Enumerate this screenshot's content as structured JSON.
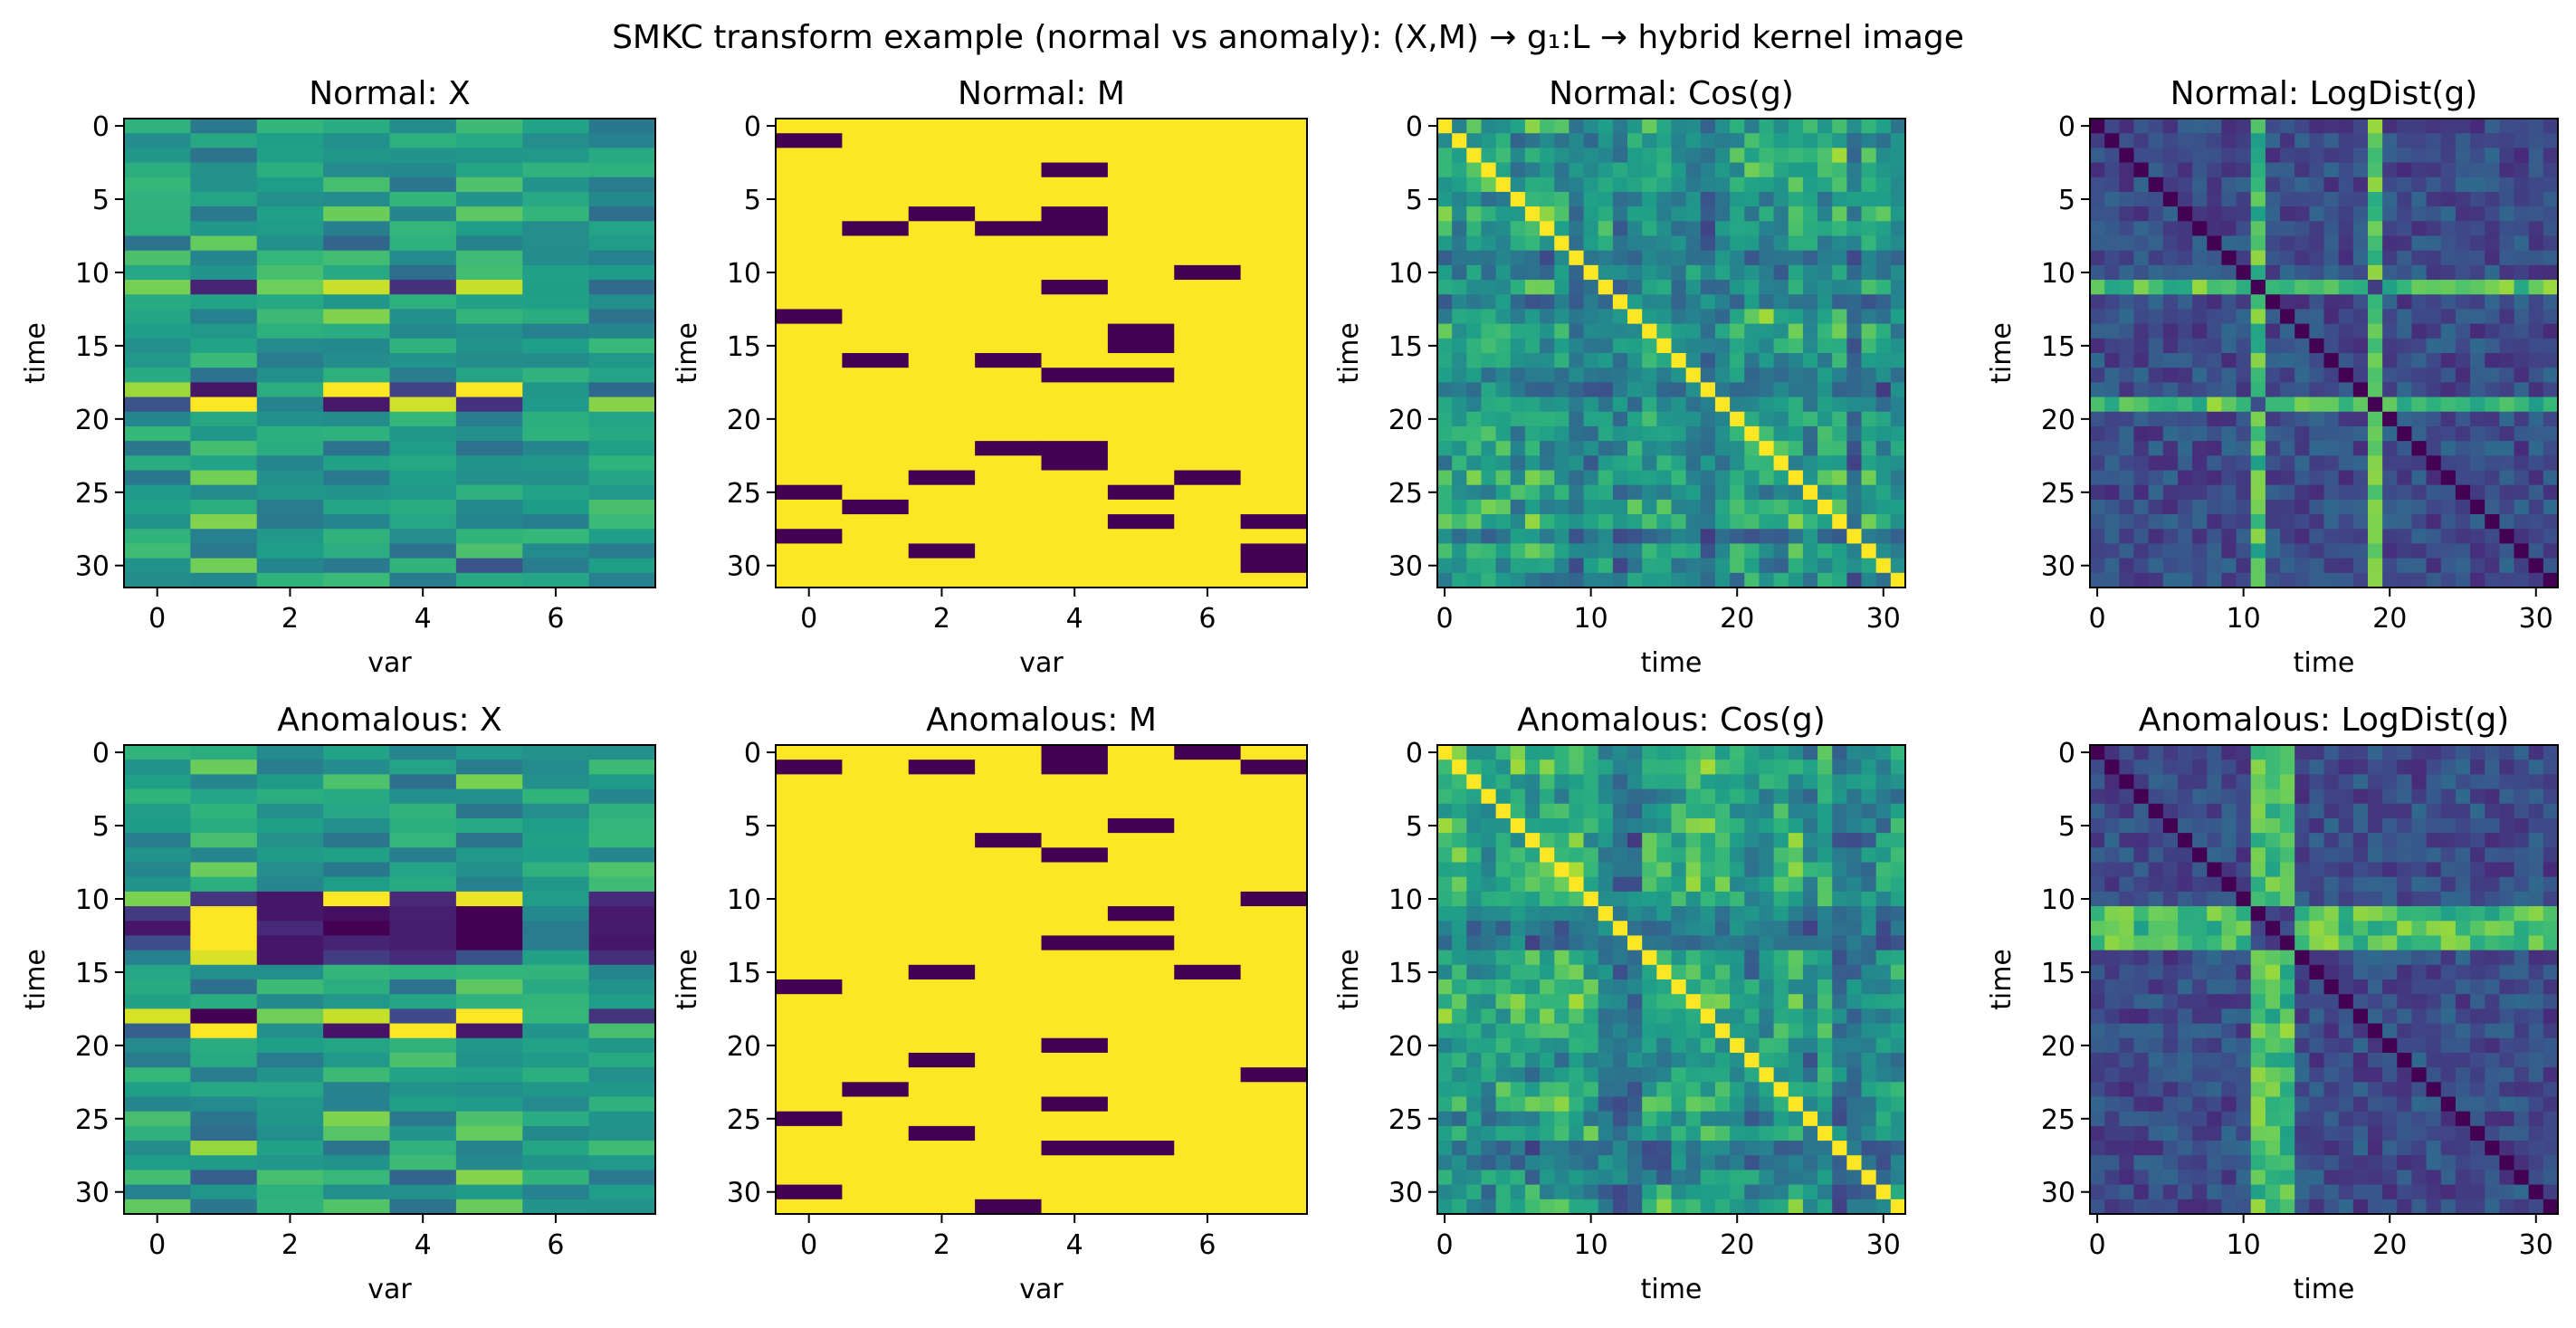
{
  "suptitle": "SMKC transform example (normal vs anomaly): (X,M) → g₁:L → hybrid kernel image",
  "colormap": {
    "name": "viridis",
    "stops": [
      "#440154",
      "#482878",
      "#3e4a89",
      "#31688e",
      "#26828e",
      "#1f9e89",
      "#35b779",
      "#6ece58",
      "#b5de2b",
      "#fde725"
    ]
  },
  "chart_data": [
    {
      "type": "heatmap",
      "title": "Normal: X",
      "xlabel": "var",
      "ylabel": "time",
      "xlim": [
        -0.5,
        7.5
      ],
      "ylim": [
        31.5,
        -0.5
      ],
      "xticks": [
        0,
        2,
        4,
        6
      ],
      "xtick_labels": [
        "0",
        "2",
        "4",
        "6"
      ],
      "yticks": [
        0,
        5,
        10,
        15,
        20,
        25,
        30
      ],
      "ytick_labels": [
        "0",
        "5",
        "10",
        "15",
        "20",
        "25",
        "30"
      ],
      "n_rows": 32,
      "n_cols": 8,
      "source": "normal_x"
    },
    {
      "type": "heatmap",
      "title": "Normal: M",
      "xlabel": "var",
      "ylabel": "time",
      "xlim": [
        -0.5,
        7.5
      ],
      "ylim": [
        31.5,
        -0.5
      ],
      "xticks": [
        0,
        2,
        4,
        6
      ],
      "xtick_labels": [
        "0",
        "2",
        "4",
        "6"
      ],
      "yticks": [
        0,
        5,
        10,
        15,
        20,
        25,
        30
      ],
      "ytick_labels": [
        "0",
        "5",
        "10",
        "15",
        "20",
        "25",
        "30"
      ],
      "n_rows": 32,
      "n_cols": 8,
      "source": "normal_m",
      "missing": [
        [
          1,
          0
        ],
        [
          3,
          4
        ],
        [
          6,
          2
        ],
        [
          6,
          4
        ],
        [
          7,
          1
        ],
        [
          7,
          3
        ],
        [
          7,
          4
        ],
        [
          10,
          6
        ],
        [
          11,
          4
        ],
        [
          13,
          0
        ],
        [
          14,
          5
        ],
        [
          15,
          5
        ],
        [
          16,
          1
        ],
        [
          16,
          3
        ],
        [
          17,
          4
        ],
        [
          17,
          5
        ],
        [
          22,
          3
        ],
        [
          22,
          4
        ],
        [
          23,
          4
        ],
        [
          24,
          2
        ],
        [
          24,
          6
        ],
        [
          25,
          0
        ],
        [
          25,
          5
        ],
        [
          26,
          1
        ],
        [
          27,
          5
        ],
        [
          27,
          7
        ],
        [
          28,
          0
        ],
        [
          29,
          2
        ],
        [
          29,
          7
        ],
        [
          30,
          7
        ]
      ]
    },
    {
      "type": "heatmap",
      "title": "Normal: Cos(g)",
      "xlabel": "time",
      "ylabel": "time",
      "xlim": [
        -0.5,
        31.5
      ],
      "ylim": [
        31.5,
        -0.5
      ],
      "xticks": [
        0,
        10,
        20,
        30
      ],
      "xtick_labels": [
        "0",
        "10",
        "20",
        "30"
      ],
      "yticks": [
        0,
        5,
        10,
        15,
        20,
        25,
        30
      ],
      "ytick_labels": [
        "0",
        "5",
        "10",
        "15",
        "20",
        "25",
        "30"
      ],
      "n_rows": 32,
      "n_cols": 32,
      "source": "normal_cos"
    },
    {
      "type": "heatmap",
      "title": "Normal: LogDist(g)",
      "xlabel": "time",
      "ylabel": "time",
      "xlim": [
        -0.5,
        31.5
      ],
      "ylim": [
        31.5,
        -0.5
      ],
      "xticks": [
        0,
        10,
        20,
        30
      ],
      "xtick_labels": [
        "0",
        "10",
        "20",
        "30"
      ],
      "yticks": [
        0,
        5,
        10,
        15,
        20,
        25,
        30
      ],
      "ytick_labels": [
        "0",
        "5",
        "10",
        "15",
        "20",
        "25",
        "30"
      ],
      "n_rows": 32,
      "n_cols": 32,
      "source": "normal_logdist",
      "bright_rows": [
        11,
        19
      ],
      "bright_cols": [
        11,
        19
      ]
    },
    {
      "type": "heatmap",
      "title": "Anomalous: X",
      "xlabel": "var",
      "ylabel": "time",
      "xlim": [
        -0.5,
        7.5
      ],
      "ylim": [
        31.5,
        -0.5
      ],
      "xticks": [
        0,
        2,
        4,
        6
      ],
      "xtick_labels": [
        "0",
        "2",
        "4",
        "6"
      ],
      "yticks": [
        0,
        5,
        10,
        15,
        20,
        25,
        30
      ],
      "ytick_labels": [
        "0",
        "5",
        "10",
        "15",
        "20",
        "25",
        "30"
      ],
      "n_rows": 32,
      "n_cols": 8,
      "source": "anomalous_x"
    },
    {
      "type": "heatmap",
      "title": "Anomalous: M",
      "xlabel": "var",
      "ylabel": "time",
      "xlim": [
        -0.5,
        7.5
      ],
      "ylim": [
        31.5,
        -0.5
      ],
      "xticks": [
        0,
        2,
        4,
        6
      ],
      "xtick_labels": [
        "0",
        "2",
        "4",
        "6"
      ],
      "yticks": [
        0,
        5,
        10,
        15,
        20,
        25,
        30
      ],
      "ytick_labels": [
        "0",
        "5",
        "10",
        "15",
        "20",
        "25",
        "30"
      ],
      "n_rows": 32,
      "n_cols": 8,
      "source": "anomalous_m",
      "missing": [
        [
          0,
          4
        ],
        [
          0,
          6
        ],
        [
          1,
          0
        ],
        [
          1,
          2
        ],
        [
          1,
          4
        ],
        [
          1,
          7
        ],
        [
          5,
          5
        ],
        [
          6,
          3
        ],
        [
          7,
          4
        ],
        [
          10,
          7
        ],
        [
          11,
          5
        ],
        [
          13,
          4
        ],
        [
          13,
          5
        ],
        [
          15,
          2
        ],
        [
          15,
          6
        ],
        [
          16,
          0
        ],
        [
          20,
          4
        ],
        [
          21,
          2
        ],
        [
          22,
          7
        ],
        [
          23,
          1
        ],
        [
          24,
          4
        ],
        [
          25,
          0
        ],
        [
          26,
          2
        ],
        [
          27,
          4
        ],
        [
          27,
          5
        ],
        [
          30,
          0
        ],
        [
          31,
          3
        ]
      ]
    },
    {
      "type": "heatmap",
      "title": "Anomalous: Cos(g)",
      "xlabel": "time",
      "ylabel": "time",
      "xlim": [
        -0.5,
        31.5
      ],
      "ylim": [
        31.5,
        -0.5
      ],
      "xticks": [
        0,
        10,
        20,
        30
      ],
      "xtick_labels": [
        "0",
        "10",
        "20",
        "30"
      ],
      "yticks": [
        0,
        5,
        10,
        15,
        20,
        25,
        30
      ],
      "ytick_labels": [
        "0",
        "5",
        "10",
        "15",
        "20",
        "25",
        "30"
      ],
      "n_rows": 32,
      "n_cols": 32,
      "source": "anomalous_cos"
    },
    {
      "type": "heatmap",
      "title": "Anomalous: LogDist(g)",
      "xlabel": "time",
      "ylabel": "time",
      "xlim": [
        -0.5,
        31.5
      ],
      "ylim": [
        31.5,
        -0.5
      ],
      "xticks": [
        0,
        10,
        20,
        30
      ],
      "xtick_labels": [
        "0",
        "10",
        "20",
        "30"
      ],
      "yticks": [
        0,
        5,
        10,
        15,
        20,
        25,
        30
      ],
      "ytick_labels": [
        "0",
        "5",
        "10",
        "15",
        "20",
        "25",
        "30"
      ],
      "n_rows": 32,
      "n_cols": 32,
      "source": "anomalous_logdist",
      "bright_rows": [
        11,
        12,
        13
      ],
      "bright_cols": [
        11,
        12,
        13
      ]
    }
  ]
}
